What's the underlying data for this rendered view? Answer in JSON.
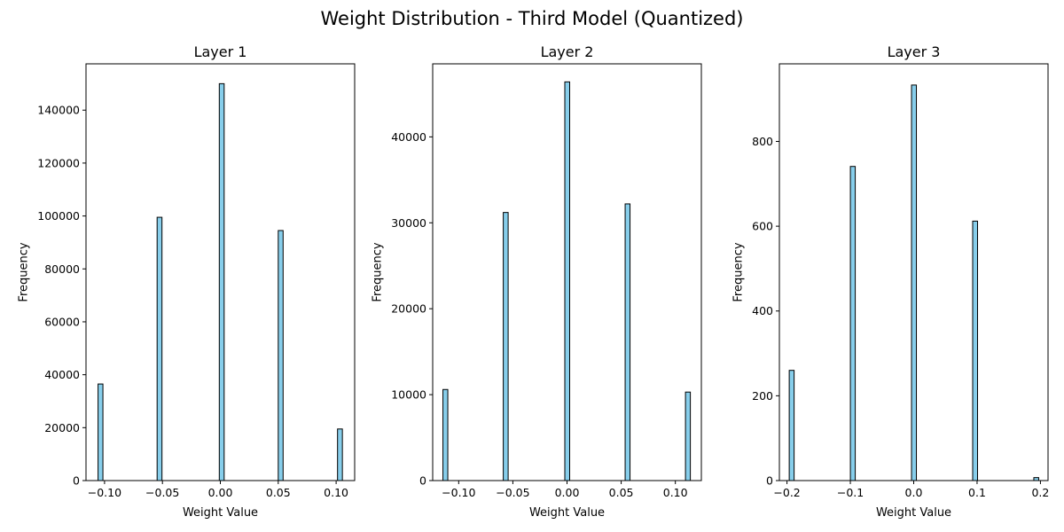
{
  "figure": {
    "title": "Weight Distribution - Third Model (Quantized)",
    "bar_color": "#87CEEB",
    "edge_color": "#000000"
  },
  "chart_data": [
    {
      "type": "bar",
      "title": "Layer 1",
      "xlabel": "Weight Value",
      "ylabel": "Frequency",
      "xlim": [
        -0.116,
        0.116
      ],
      "ylim": [
        0,
        157500
      ],
      "xticks": [
        -0.1,
        -0.05,
        0.0,
        0.05,
        0.1
      ],
      "xtick_labels": [
        "−0.10",
        "−0.05",
        "0.00",
        "0.05",
        "0.10"
      ],
      "yticks": [
        0,
        20000,
        40000,
        60000,
        80000,
        100000,
        120000,
        140000
      ],
      "ytick_labels": [
        "0",
        "20000",
        "40000",
        "60000",
        "80000",
        "100000",
        "120000",
        "140000"
      ],
      "bin_width": 0.0042,
      "bars": [
        {
          "x": -0.1035,
          "value": 36500
        },
        {
          "x": -0.0525,
          "value": 99500
        },
        {
          "x": 0.0012,
          "value": 150000
        },
        {
          "x": 0.0521,
          "value": 94500
        },
        {
          "x": 0.1033,
          "value": 19500
        }
      ]
    },
    {
      "type": "bar",
      "title": "Layer 2",
      "xlabel": "Weight Value",
      "ylabel": "Frequency",
      "xlim": [
        -0.124,
        0.124
      ],
      "ylim": [
        0,
        48500
      ],
      "xticks": [
        -0.1,
        -0.05,
        0.0,
        0.05,
        0.1
      ],
      "xtick_labels": [
        "−0.10",
        "−0.05",
        "0.00",
        "0.05",
        "0.10"
      ],
      "yticks": [
        0,
        10000,
        20000,
        30000,
        40000
      ],
      "ytick_labels": [
        "0",
        "10000",
        "20000",
        "30000",
        "40000"
      ],
      "bin_width": 0.0045,
      "bars": [
        {
          "x": -0.1123,
          "value": 10600
        },
        {
          "x": -0.0566,
          "value": 31200
        },
        {
          "x": 0.0002,
          "value": 46400
        },
        {
          "x": 0.0559,
          "value": 32200
        },
        {
          "x": 0.1116,
          "value": 10300
        }
      ]
    },
    {
      "type": "bar",
      "title": "Layer 3",
      "xlabel": "Weight Value",
      "ylabel": "Frequency",
      "xlim": [
        -0.212,
        0.212
      ],
      "ylim": [
        0,
        983
      ],
      "xticks": [
        -0.2,
        -0.1,
        0.0,
        0.1,
        0.2
      ],
      "xtick_labels": [
        "−0.2",
        "−0.1",
        "0.0",
        "0.1",
        "0.2"
      ],
      "yticks": [
        0,
        200,
        400,
        600,
        800
      ],
      "ytick_labels": [
        "0",
        "200",
        "400",
        "600",
        "800"
      ],
      "bin_width": 0.0077,
      "bars": [
        {
          "x": -0.1926,
          "value": 260
        },
        {
          "x": -0.0961,
          "value": 741
        },
        {
          "x": 0.0004,
          "value": 933
        },
        {
          "x": 0.0969,
          "value": 612
        },
        {
          "x": 0.1934,
          "value": 7
        }
      ]
    }
  ]
}
